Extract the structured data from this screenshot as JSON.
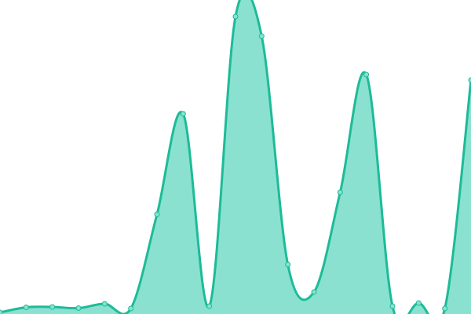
{
  "chart_data": {
    "type": "area",
    "title": "",
    "xlabel": "",
    "ylabel": "",
    "axes_visible": false,
    "grid": false,
    "legend": "none",
    "curve": "smooth",
    "x": [
      0,
      1,
      2,
      3,
      4,
      5,
      6,
      7,
      8,
      9,
      10,
      11,
      12,
      13,
      14,
      15,
      16,
      17,
      18
    ],
    "values": [
      2,
      8.5,
      9,
      7.5,
      13,
      7,
      127,
      255,
      10,
      379,
      354,
      63,
      28,
      155,
      305,
      10,
      14,
      7,
      298
    ],
    "ylim": [
      0,
      400
    ],
    "colors": {
      "line": "#1dbb98",
      "fill": "#8ae1cf",
      "marker_fill": "#8ae1cf",
      "marker_stroke": "#1dbb98"
    }
  }
}
